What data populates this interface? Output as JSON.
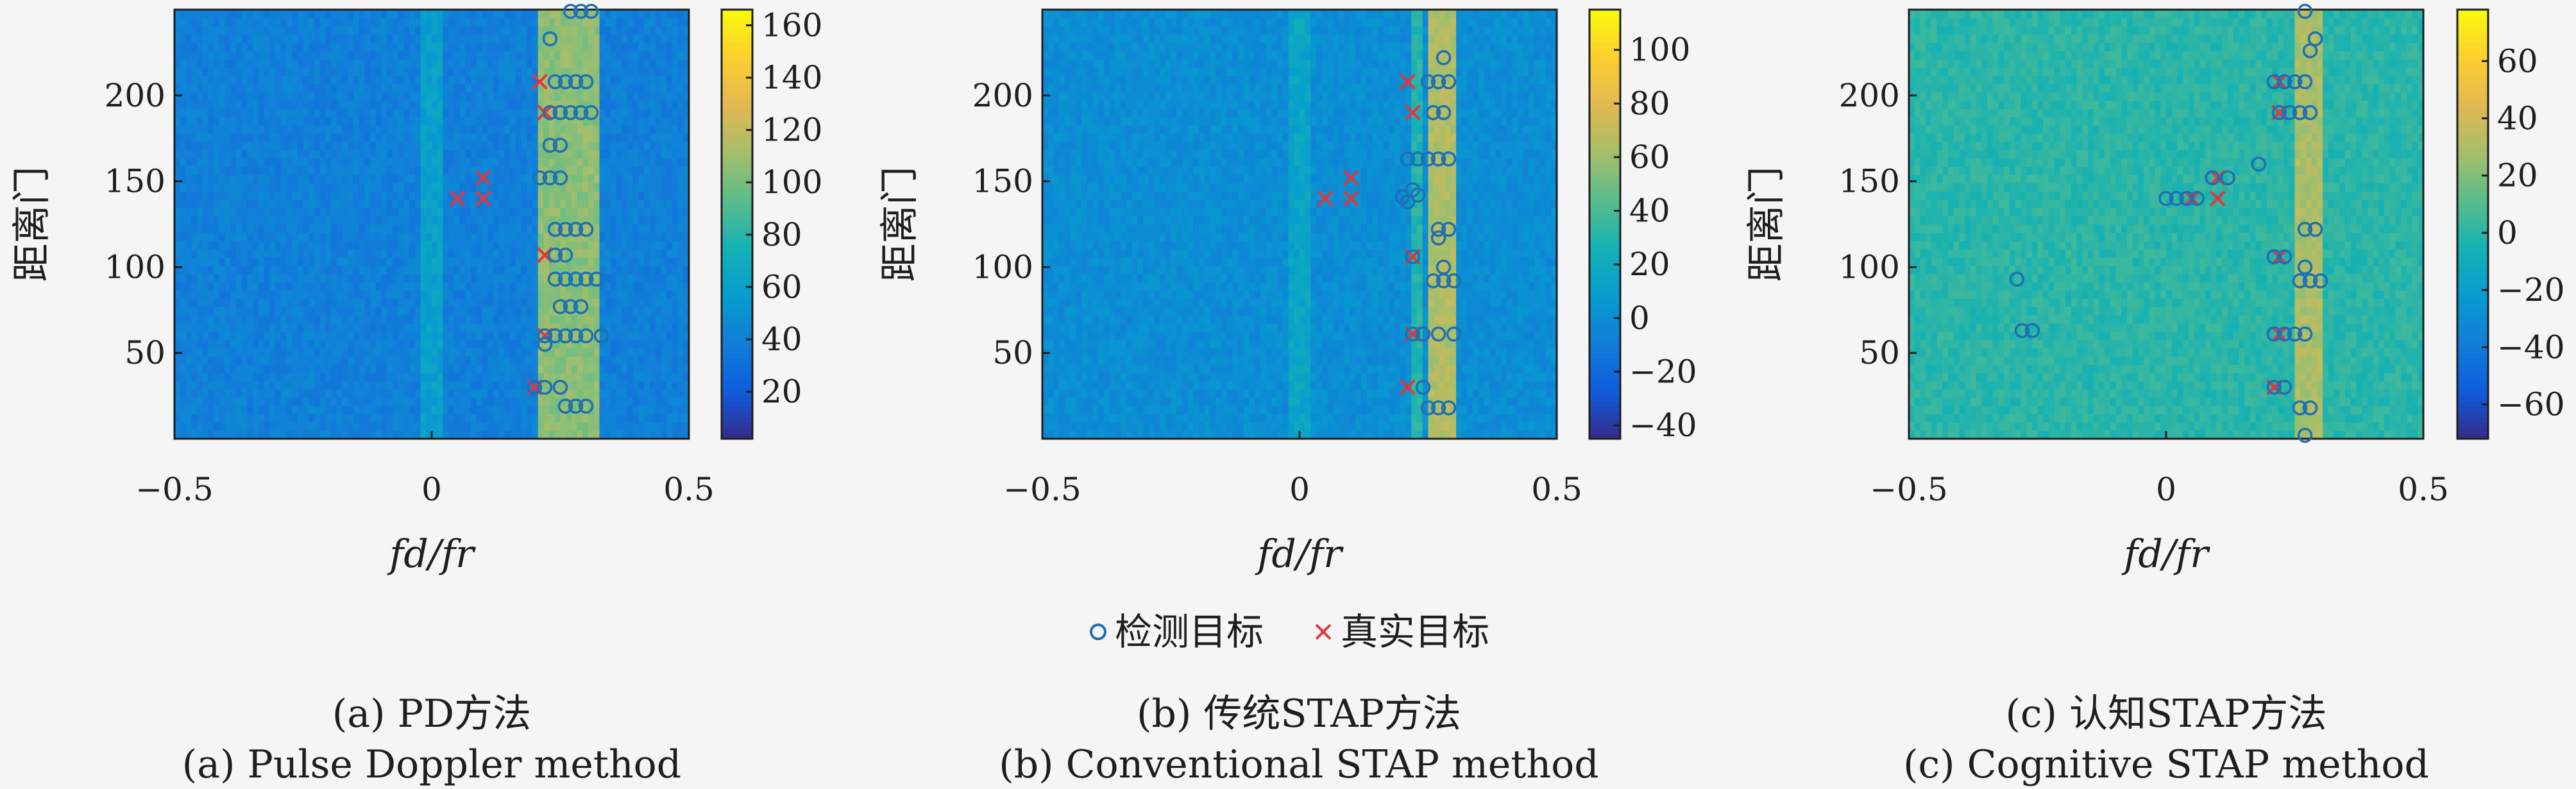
{
  "legend": {
    "detected": "检测目标",
    "true": "真实目标"
  },
  "captions": [
    {
      "cn": "(a) PD方法",
      "en": "(a) Pulse Doppler method"
    },
    {
      "cn": "(b) 传统STAP方法",
      "en": "(b) Conventional STAP method"
    },
    {
      "cn": "(c) 认知STAP方法",
      "en": "(c) Cognitive STAP method"
    }
  ],
  "colors": {
    "detected": "#1f6fb2",
    "true": "#e8343b",
    "axis": "#1e1e1e"
  },
  "chart_data": [
    {
      "type": "heatmap",
      "title": "(a) PD方法 / (a) Pulse Doppler method",
      "xlabel": "fd/fr",
      "ylabel": "距离门",
      "xlim": [
        -0.5,
        0.5
      ],
      "ylim": [
        0,
        250
      ],
      "xticks": [
        "−0.5",
        "0",
        "0.5"
      ],
      "yticks": [
        "50",
        "100",
        "150",
        "200"
      ],
      "colorbar": {
        "range": [
          2,
          166
        ],
        "ticks": [
          "20",
          "40",
          "60",
          "80",
          "100",
          "120",
          "140",
          "160"
        ]
      },
      "background_level": 40,
      "bands": [
        {
          "x_from": -0.02,
          "x_to": 0.02,
          "level": 60
        },
        {
          "x_from": 0.21,
          "x_to": 0.33,
          "level": 105
        }
      ],
      "detected_targets": [
        {
          "x": 0.23,
          "y": 233
        },
        {
          "x": 0.27,
          "y": 249
        },
        {
          "x": 0.29,
          "y": 249
        },
        {
          "x": 0.31,
          "y": 249
        },
        {
          "x": 0.24,
          "y": 208
        },
        {
          "x": 0.26,
          "y": 208
        },
        {
          "x": 0.28,
          "y": 208
        },
        {
          "x": 0.3,
          "y": 208
        },
        {
          "x": 0.23,
          "y": 190
        },
        {
          "x": 0.25,
          "y": 190
        },
        {
          "x": 0.27,
          "y": 190
        },
        {
          "x": 0.29,
          "y": 190
        },
        {
          "x": 0.31,
          "y": 190
        },
        {
          "x": 0.23,
          "y": 171
        },
        {
          "x": 0.25,
          "y": 171
        },
        {
          "x": 0.21,
          "y": 152
        },
        {
          "x": 0.23,
          "y": 152
        },
        {
          "x": 0.25,
          "y": 152
        },
        {
          "x": 0.24,
          "y": 122
        },
        {
          "x": 0.26,
          "y": 122
        },
        {
          "x": 0.28,
          "y": 122
        },
        {
          "x": 0.3,
          "y": 122
        },
        {
          "x": 0.24,
          "y": 107
        },
        {
          "x": 0.26,
          "y": 107
        },
        {
          "x": 0.24,
          "y": 93
        },
        {
          "x": 0.26,
          "y": 93
        },
        {
          "x": 0.28,
          "y": 93
        },
        {
          "x": 0.3,
          "y": 93
        },
        {
          "x": 0.32,
          "y": 93
        },
        {
          "x": 0.25,
          "y": 77
        },
        {
          "x": 0.27,
          "y": 77
        },
        {
          "x": 0.29,
          "y": 77
        },
        {
          "x": 0.22,
          "y": 60
        },
        {
          "x": 0.24,
          "y": 60
        },
        {
          "x": 0.26,
          "y": 60
        },
        {
          "x": 0.28,
          "y": 60
        },
        {
          "x": 0.3,
          "y": 60
        },
        {
          "x": 0.33,
          "y": 60
        },
        {
          "x": 0.22,
          "y": 55
        },
        {
          "x": 0.2,
          "y": 30
        },
        {
          "x": 0.22,
          "y": 30
        },
        {
          "x": 0.25,
          "y": 30
        },
        {
          "x": 0.26,
          "y": 19
        },
        {
          "x": 0.28,
          "y": 19
        },
        {
          "x": 0.3,
          "y": 19
        }
      ],
      "true_targets": [
        {
          "x": 0.21,
          "y": 208
        },
        {
          "x": 0.22,
          "y": 190
        },
        {
          "x": 0.1,
          "y": 152
        },
        {
          "x": 0.1,
          "y": 140
        },
        {
          "x": 0.05,
          "y": 140
        },
        {
          "x": 0.22,
          "y": 107
        },
        {
          "x": 0.22,
          "y": 60
        },
        {
          "x": 0.2,
          "y": 30
        }
      ]
    },
    {
      "type": "heatmap",
      "title": "(b) 传统STAP方法 / (b) Conventional STAP method",
      "xlabel": "fd/fr",
      "ylabel": "距离门",
      "xlim": [
        -0.5,
        0.5
      ],
      "ylim": [
        0,
        250
      ],
      "xticks": [
        "−0.5",
        "0",
        "0.5"
      ],
      "yticks": [
        "50",
        "100",
        "150",
        "200"
      ],
      "colorbar": {
        "range": [
          -45,
          115
        ],
        "ticks": [
          "−40",
          "−20",
          "0",
          "20",
          "40",
          "60",
          "80",
          "100"
        ]
      },
      "background_level": 0,
      "bands": [
        {
          "x_from": -0.02,
          "x_to": 0.02,
          "level": 15
        },
        {
          "x_from": 0.22,
          "x_to": 0.24,
          "level": 30
        },
        {
          "x_from": 0.25,
          "x_to": 0.3,
          "level": 65
        }
      ],
      "detected_targets": [
        {
          "x": 0.28,
          "y": 222
        },
        {
          "x": 0.25,
          "y": 208
        },
        {
          "x": 0.27,
          "y": 208
        },
        {
          "x": 0.29,
          "y": 208
        },
        {
          "x": 0.26,
          "y": 190
        },
        {
          "x": 0.28,
          "y": 190
        },
        {
          "x": 0.21,
          "y": 163
        },
        {
          "x": 0.23,
          "y": 163
        },
        {
          "x": 0.25,
          "y": 163
        },
        {
          "x": 0.27,
          "y": 163
        },
        {
          "x": 0.29,
          "y": 163
        },
        {
          "x": 0.22,
          "y": 145
        },
        {
          "x": 0.2,
          "y": 141
        },
        {
          "x": 0.21,
          "y": 138
        },
        {
          "x": 0.23,
          "y": 142
        },
        {
          "x": 0.27,
          "y": 122
        },
        {
          "x": 0.29,
          "y": 122
        },
        {
          "x": 0.27,
          "y": 117
        },
        {
          "x": 0.22,
          "y": 106
        },
        {
          "x": 0.28,
          "y": 100
        },
        {
          "x": 0.26,
          "y": 92
        },
        {
          "x": 0.28,
          "y": 92
        },
        {
          "x": 0.3,
          "y": 92
        },
        {
          "x": 0.22,
          "y": 61
        },
        {
          "x": 0.24,
          "y": 61
        },
        {
          "x": 0.27,
          "y": 61
        },
        {
          "x": 0.3,
          "y": 61
        },
        {
          "x": 0.24,
          "y": 30
        },
        {
          "x": 0.25,
          "y": 18
        },
        {
          "x": 0.27,
          "y": 18
        },
        {
          "x": 0.29,
          "y": 18
        }
      ],
      "true_targets": [
        {
          "x": 0.21,
          "y": 208
        },
        {
          "x": 0.22,
          "y": 190
        },
        {
          "x": 0.1,
          "y": 152
        },
        {
          "x": 0.1,
          "y": 140
        },
        {
          "x": 0.05,
          "y": 140
        },
        {
          "x": 0.22,
          "y": 106
        },
        {
          "x": 0.22,
          "y": 61
        },
        {
          "x": 0.21,
          "y": 30
        }
      ]
    },
    {
      "type": "heatmap",
      "title": "(c) 认知STAP方法 / (c) Cognitive STAP method",
      "xlabel": "fd/fr",
      "ylabel": "距离门",
      "xlim": [
        -0.5,
        0.5
      ],
      "ylim": [
        0,
        250
      ],
      "xticks": [
        "−0.5",
        "0",
        "0.5"
      ],
      "yticks": [
        "50",
        "100",
        "150",
        "200"
      ],
      "colorbar": {
        "range": [
          -72,
          78
        ],
        "ticks": [
          "−60",
          "−40",
          "−20",
          "0",
          "20",
          "40",
          "60"
        ]
      },
      "background_level": 0,
      "bands": [
        {
          "x_from": 0.25,
          "x_to": 0.3,
          "level": 30
        }
      ],
      "detected_targets": [
        {
          "x": 0.27,
          "y": 249
        },
        {
          "x": 0.29,
          "y": 233
        },
        {
          "x": 0.28,
          "y": 226
        },
        {
          "x": 0.21,
          "y": 208
        },
        {
          "x": 0.23,
          "y": 208
        },
        {
          "x": 0.25,
          "y": 208
        },
        {
          "x": 0.27,
          "y": 208
        },
        {
          "x": 0.22,
          "y": 190
        },
        {
          "x": 0.24,
          "y": 190
        },
        {
          "x": 0.26,
          "y": 190
        },
        {
          "x": 0.28,
          "y": 190
        },
        {
          "x": 0.18,
          "y": 160
        },
        {
          "x": 0.12,
          "y": 152
        },
        {
          "x": 0.09,
          "y": 152
        },
        {
          "x": 0.0,
          "y": 140
        },
        {
          "x": 0.02,
          "y": 140
        },
        {
          "x": 0.04,
          "y": 140
        },
        {
          "x": 0.06,
          "y": 140
        },
        {
          "x": 0.27,
          "y": 122
        },
        {
          "x": 0.29,
          "y": 122
        },
        {
          "x": 0.21,
          "y": 106
        },
        {
          "x": 0.23,
          "y": 106
        },
        {
          "x": 0.27,
          "y": 100
        },
        {
          "x": -0.29,
          "y": 93
        },
        {
          "x": 0.26,
          "y": 92
        },
        {
          "x": 0.28,
          "y": 92
        },
        {
          "x": 0.3,
          "y": 92
        },
        {
          "x": -0.28,
          "y": 63
        },
        {
          "x": -0.26,
          "y": 63
        },
        {
          "x": 0.21,
          "y": 61
        },
        {
          "x": 0.23,
          "y": 61
        },
        {
          "x": 0.25,
          "y": 61
        },
        {
          "x": 0.27,
          "y": 61
        },
        {
          "x": 0.21,
          "y": 30
        },
        {
          "x": 0.23,
          "y": 30
        },
        {
          "x": 0.26,
          "y": 18
        },
        {
          "x": 0.28,
          "y": 18
        },
        {
          "x": 0.27,
          "y": 2
        }
      ],
      "true_targets": [
        {
          "x": 0.22,
          "y": 208
        },
        {
          "x": 0.22,
          "y": 190
        },
        {
          "x": 0.1,
          "y": 152
        },
        {
          "x": 0.1,
          "y": 140
        },
        {
          "x": 0.05,
          "y": 140
        },
        {
          "x": 0.22,
          "y": 106
        },
        {
          "x": 0.22,
          "y": 61
        },
        {
          "x": 0.21,
          "y": 30
        }
      ]
    }
  ]
}
